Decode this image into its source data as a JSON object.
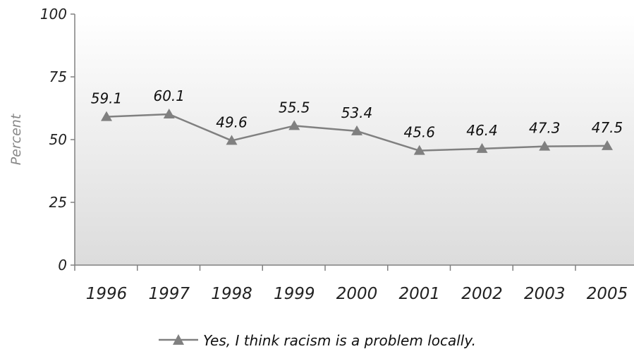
{
  "chart_data": {
    "type": "line",
    "title": "",
    "xlabel": "",
    "ylabel": "Percent",
    "categories": [
      "1996",
      "1997",
      "1998",
      "1999",
      "2000",
      "2001",
      "2002",
      "2003",
      "2005"
    ],
    "series": [
      {
        "name": "Yes, I think racism is a problem locally.",
        "values": [
          59.1,
          60.1,
          49.6,
          55.5,
          53.4,
          45.6,
          46.4,
          47.3,
          47.5
        ],
        "labels": [
          "59.1",
          "60.1",
          "49.6",
          "55.5",
          "53.4",
          "45.6",
          "46.4",
          "47.3",
          "47.5"
        ],
        "color": "#808080",
        "marker": "triangle"
      }
    ],
    "ylim": [
      0,
      100
    ],
    "yticks": [
      "0",
      "25",
      "50",
      "75",
      "100"
    ],
    "grid": false,
    "legend_position": "bottom"
  }
}
